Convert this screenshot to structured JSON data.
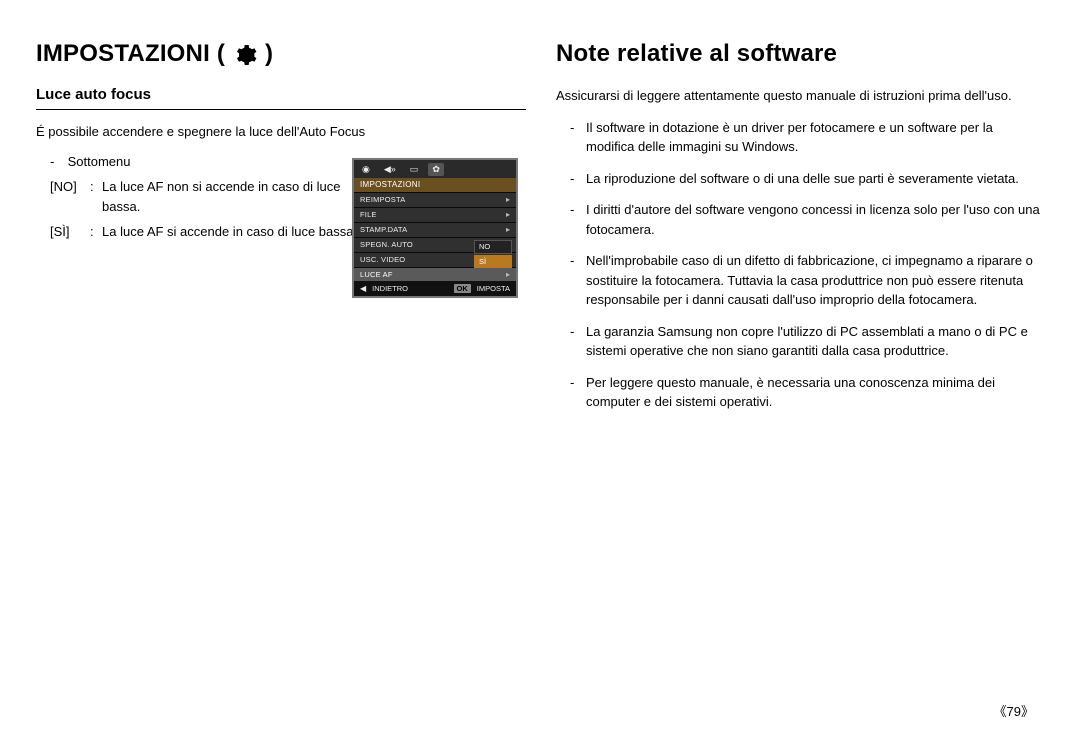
{
  "left": {
    "heading": "IMPOSTAZIONI (",
    "heading_close": ")",
    "sub_heading": "Luce auto focus",
    "desc": "É possibile accendere e spegnere la luce dell'Auto Focus",
    "submenu_label": "Sottomenu",
    "items": [
      {
        "key": "[NO]",
        "colon": ":",
        "val": "La luce AF non si accende in caso di luce bassa."
      },
      {
        "key": "[SÌ]",
        "colon": ":",
        "val": "La luce AF si accende in caso di luce bassa."
      }
    ]
  },
  "right": {
    "heading": "Note relative al software",
    "intro": "Assicurarsi di leggere attentamente questo manuale di istruzioni prima dell'uso.",
    "bullets": [
      "Il software in dotazione è un driver per fotocamere e un software per la modifica delle immagini su Windows.",
      "La riproduzione del software o di una delle sue parti è severamente vietata.",
      "I diritti d'autore del software vengono concessi in licenza solo per l'uso con una fotocamera.",
      "Nell'improbabile caso di un difetto di fabbricazione, ci impegnamo a riparare o sostituire la fotocamera.  Tuttavia la casa produttrice non può essere ritenuta responsabile per i danni causati dall'uso improprio della fotocamera.",
      "La garanzia Samsung non copre l'utilizzo di PC assemblati a mano o di PC e sistemi operative che non siano garantiti dalla casa produttrice.",
      "Per leggere questo manuale, è necessaria una conoscenza minima dei computer e dei sistemi operativi."
    ]
  },
  "lcd": {
    "header": "IMPOSTAZIONI",
    "rows": [
      {
        "label": "REIMPOSTA",
        "active": false
      },
      {
        "label": "FILE",
        "active": false
      },
      {
        "label": "STAMP.DATA",
        "active": false
      },
      {
        "label": "SPEGN. AUTO",
        "active": false
      },
      {
        "label": "USC. VIDEO",
        "active": false
      },
      {
        "label": "LUCE AF",
        "active": true
      }
    ],
    "sub_options": [
      {
        "label": "NO",
        "selected": false
      },
      {
        "label": "SÌ",
        "selected": true
      }
    ],
    "footer_back": "INDIETRO",
    "footer_ok": "OK",
    "footer_set": "IMPOSTA"
  },
  "page_number": "《79》"
}
